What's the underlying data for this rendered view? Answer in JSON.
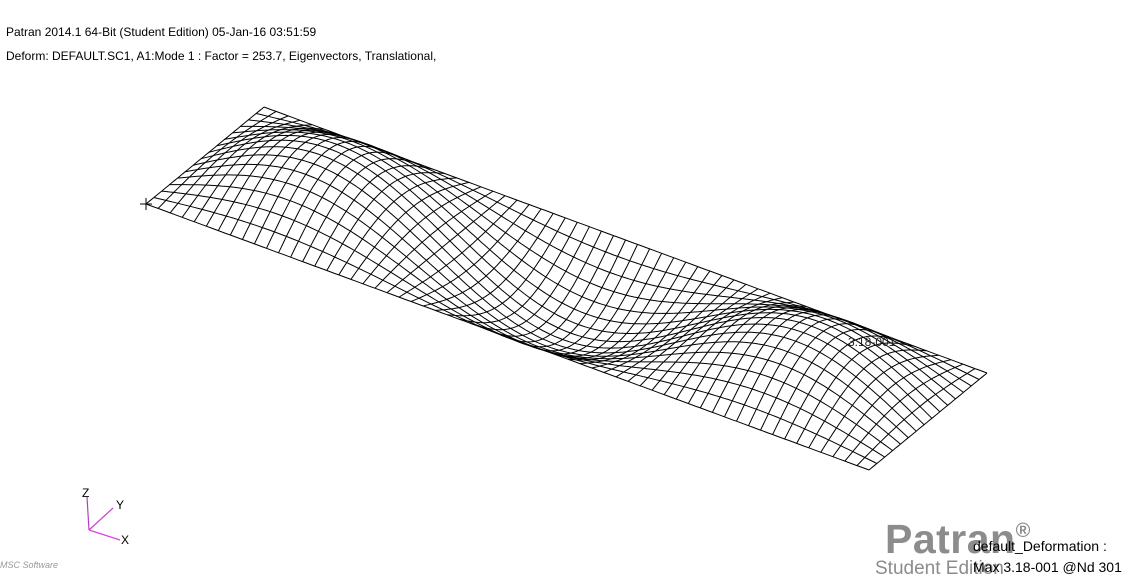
{
  "header": {
    "line1": "Patran 2014.1 64-Bit  (Student Edition) 05-Jan-16 03:51:59",
    "line2": "Deform: DEFAULT.SC1, A1:Mode 1 : Factor = 253.7, Eigenvectors, Translational,"
  },
  "mesh": {
    "label": "3.18-001",
    "line_color": "#000000"
  },
  "triad": {
    "z_label": "Z",
    "y_label": "Y",
    "x_label": "X",
    "z_color": "#b040c0",
    "y_color": "#d040d0",
    "x_color": "#e040e0"
  },
  "logo": {
    "name": "Patran",
    "reg": "®",
    "sub": "Student Edition",
    "color": "#8c8c8c"
  },
  "legend": {
    "title": "default_Deformation :",
    "max": "Max 3.18-001 @Nd 301"
  },
  "vendor": "MSC Software"
}
